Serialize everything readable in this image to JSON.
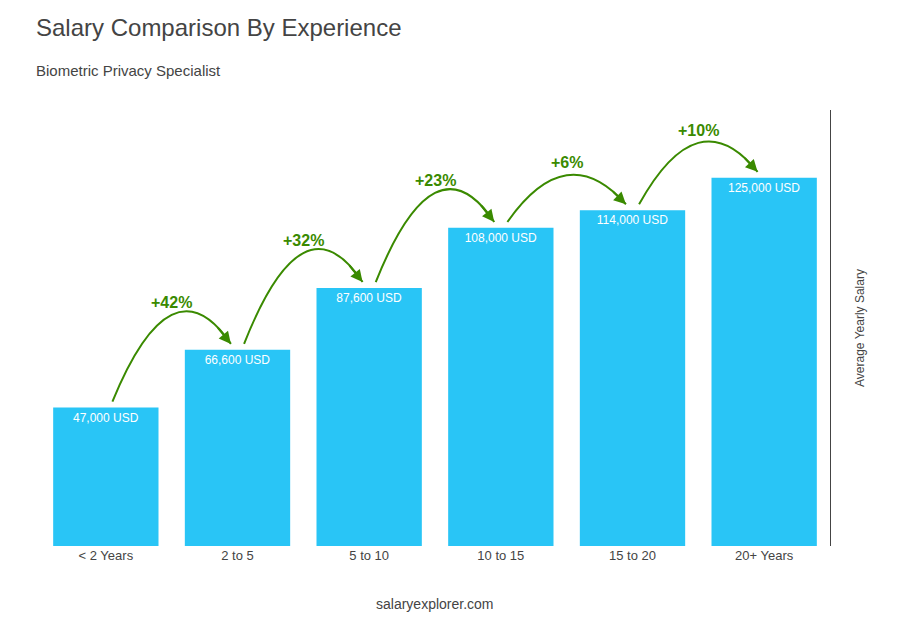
{
  "chart_data": {
    "type": "bar",
    "title": "Salary Comparison By Experience",
    "subtitle": "Biometric Privacy Specialist",
    "categories": [
      "< 2 Years",
      "2 to 5",
      "5 to 10",
      "10 to 15",
      "15 to 20",
      "20+ Years"
    ],
    "values": [
      47000,
      66600,
      87600,
      108000,
      114000,
      125000
    ],
    "value_labels": [
      "47,000 USD",
      "66,600 USD",
      "87,600 USD",
      "108,000 USD",
      "114,000 USD",
      "125,000 USD"
    ],
    "data_labels": true,
    "color": "#29C5F6",
    "ylabel": "Average Yearly Salary",
    "ylim": [
      0,
      148000
    ],
    "tick_labels": "x",
    "grid": false,
    "annotations": [
      {
        "text": "+42%",
        "from": "< 2 Years",
        "to": "2 to 5"
      },
      {
        "text": "+32%",
        "from": "2 to 5",
        "to": "5 to 10"
      },
      {
        "text": "+23%",
        "from": "5 to 10",
        "to": "10 to 15"
      },
      {
        "text": "+6%",
        "from": "10 to 15",
        "to": "15 to 20"
      },
      {
        "text": "+10%",
        "from": "15 to 20",
        "to": "20+ Years"
      }
    ],
    "footer": "salaryexplorer.com"
  }
}
